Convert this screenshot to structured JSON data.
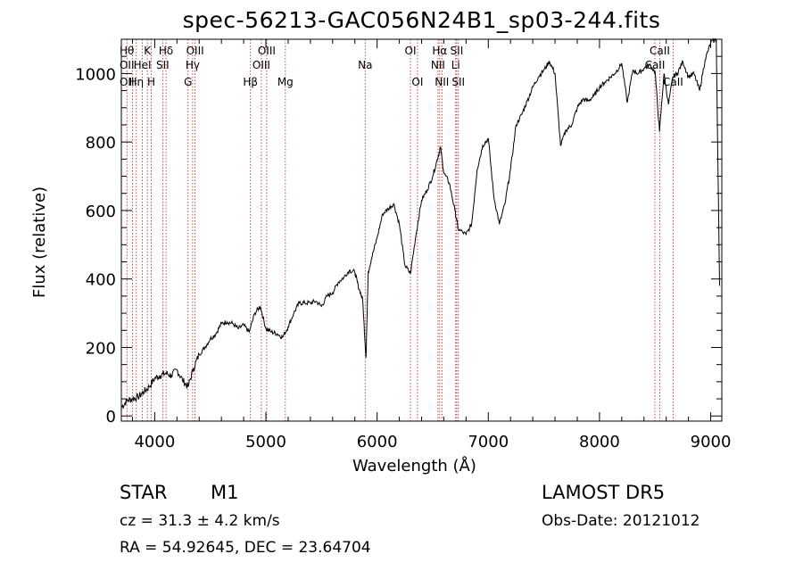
{
  "chart_data": {
    "type": "line",
    "title": "spec-56213-GAC056N24B1_sp03-244.fits",
    "xlabel": "Wavelength (Å)",
    "ylabel": "Flux (relative)",
    "xlim": [
      3700,
      9100
    ],
    "ylim": [
      -15,
      1100
    ],
    "xticks": [
      4000,
      5000,
      6000,
      7000,
      8000,
      9000
    ],
    "yticks": [
      0,
      200,
      400,
      600,
      800,
      1000
    ],
    "grid": false,
    "series": [
      {
        "color": "#000000",
        "points": [
          [
            3700,
            25
          ],
          [
            3750,
            45
          ],
          [
            3800,
            50
          ],
          [
            3850,
            55
          ],
          [
            3900,
            70
          ],
          [
            3950,
            85
          ],
          [
            4000,
            110
          ],
          [
            4050,
            118
          ],
          [
            4100,
            125
          ],
          [
            4150,
            118
          ],
          [
            4200,
            135
          ],
          [
            4250,
            105
          ],
          [
            4300,
            85
          ],
          [
            4350,
            140
          ],
          [
            4400,
            180
          ],
          [
            4450,
            200
          ],
          [
            4500,
            225
          ],
          [
            4550,
            240
          ],
          [
            4600,
            270
          ],
          [
            4650,
            275
          ],
          [
            4700,
            270
          ],
          [
            4750,
            255
          ],
          [
            4800,
            265
          ],
          [
            4850,
            245
          ],
          [
            4900,
            300
          ],
          [
            4950,
            320
          ],
          [
            5000,
            255
          ],
          [
            5050,
            245
          ],
          [
            5100,
            240
          ],
          [
            5150,
            230
          ],
          [
            5200,
            260
          ],
          [
            5250,
            300
          ],
          [
            5300,
            330
          ],
          [
            5350,
            330
          ],
          [
            5400,
            330
          ],
          [
            5450,
            335
          ],
          [
            5500,
            320
          ],
          [
            5550,
            350
          ],
          [
            5600,
            360
          ],
          [
            5650,
            390
          ],
          [
            5700,
            405
          ],
          [
            5750,
            425
          ],
          [
            5800,
            420
          ],
          [
            5830,
            380
          ],
          [
            5870,
            340
          ],
          [
            5900,
            170
          ],
          [
            5920,
            420
          ],
          [
            5950,
            460
          ],
          [
            6000,
            520
          ],
          [
            6050,
            590
          ],
          [
            6100,
            605
          ],
          [
            6150,
            620
          ],
          [
            6200,
            560
          ],
          [
            6250,
            440
          ],
          [
            6300,
            415
          ],
          [
            6350,
            530
          ],
          [
            6400,
            630
          ],
          [
            6450,
            660
          ],
          [
            6500,
            700
          ],
          [
            6550,
            760
          ],
          [
            6570,
            785
          ],
          [
            6600,
            710
          ],
          [
            6650,
            680
          ],
          [
            6700,
            600
          ],
          [
            6730,
            545
          ],
          [
            6800,
            530
          ],
          [
            6850,
            560
          ],
          [
            6900,
            720
          ],
          [
            6950,
            790
          ],
          [
            7000,
            810
          ],
          [
            7050,
            640
          ],
          [
            7100,
            560
          ],
          [
            7150,
            620
          ],
          [
            7200,
            720
          ],
          [
            7250,
            850
          ],
          [
            7300,
            880
          ],
          [
            7350,
            920
          ],
          [
            7400,
            960
          ],
          [
            7450,
            990
          ],
          [
            7500,
            1010
          ],
          [
            7550,
            1035
          ],
          [
            7600,
            1000
          ],
          [
            7650,
            790
          ],
          [
            7700,
            835
          ],
          [
            7750,
            850
          ],
          [
            7800,
            900
          ],
          [
            7850,
            925
          ],
          [
            7900,
            920
          ],
          [
            7950,
            935
          ],
          [
            8000,
            960
          ],
          [
            8050,
            975
          ],
          [
            8100,
            990
          ],
          [
            8150,
            1005
          ],
          [
            8200,
            1030
          ],
          [
            8250,
            915
          ],
          [
            8300,
            1010
          ],
          [
            8350,
            1000
          ],
          [
            8400,
            1015
          ],
          [
            8450,
            1025
          ],
          [
            8500,
            1005
          ],
          [
            8540,
            830
          ],
          [
            8580,
            1000
          ],
          [
            8620,
            910
          ],
          [
            8660,
            990
          ],
          [
            8700,
            1000
          ],
          [
            8750,
            1035
          ],
          [
            8800,
            990
          ],
          [
            8850,
            1000
          ],
          [
            8900,
            950
          ],
          [
            8950,
            1040
          ],
          [
            9000,
            1090
          ],
          [
            9050,
            1100
          ],
          [
            9080,
            380
          ]
        ]
      }
    ],
    "lines": [
      {
        "x": 3750,
        "labels": [
          "Hθ",
          "OII",
          "OII"
        ]
      },
      {
        "x": 3800,
        "labels": [
          "",
          "",
          ""
        ]
      },
      {
        "x": 3835,
        "labels": [
          "",
          "",
          "Hη"
        ]
      },
      {
        "x": 3889,
        "labels": [
          "",
          "HeI",
          ""
        ]
      },
      {
        "x": 3934,
        "labels": [
          "K",
          "",
          ""
        ]
      },
      {
        "x": 3969,
        "labels": [
          "",
          "",
          "H"
        ]
      },
      {
        "x": 4072,
        "labels": [
          "",
          "SII",
          ""
        ]
      },
      {
        "x": 4102,
        "labels": [
          "Hδ",
          "",
          ""
        ]
      },
      {
        "x": 4300,
        "labels": [
          "",
          "",
          "G"
        ]
      },
      {
        "x": 4341,
        "labels": [
          "",
          "Hγ",
          ""
        ]
      },
      {
        "x": 4363,
        "labels": [
          "OIII",
          "",
          ""
        ]
      },
      {
        "x": 4861,
        "labels": [
          "",
          "",
          "Hβ"
        ]
      },
      {
        "x": 4959,
        "labels": [
          "",
          "OIII",
          ""
        ]
      },
      {
        "x": 5007,
        "labels": [
          "OIII",
          "",
          ""
        ]
      },
      {
        "x": 5175,
        "labels": [
          "",
          "",
          "Mg"
        ]
      },
      {
        "x": 5893,
        "labels": [
          "",
          "Na",
          ""
        ]
      },
      {
        "x": 6300,
        "labels": [
          "OI",
          "",
          ""
        ]
      },
      {
        "x": 6363,
        "labels": [
          "",
          "",
          "OI"
        ]
      },
      {
        "x": 6548,
        "labels": [
          "",
          "NII",
          ""
        ]
      },
      {
        "x": 6563,
        "labels": [
          "Hα",
          "",
          ""
        ]
      },
      {
        "x": 6583,
        "labels": [
          "",
          "",
          "NII"
        ]
      },
      {
        "x": 6707,
        "labels": [
          "",
          "Li",
          ""
        ]
      },
      {
        "x": 6716,
        "labels": [
          "SII",
          "",
          ""
        ]
      },
      {
        "x": 6731,
        "labels": [
          "",
          "",
          "SII"
        ]
      },
      {
        "x": 8498,
        "labels": [
          "",
          "CaII",
          ""
        ]
      },
      {
        "x": 8542,
        "labels": [
          "CaII",
          "",
          ""
        ]
      },
      {
        "x": 8662,
        "labels": [
          "",
          "",
          "CaII"
        ]
      }
    ]
  },
  "info": {
    "obj_class": "STAR",
    "obj_subclass": "M1",
    "survey": "LAMOST DR5",
    "cz": "cz = 31.3 ± 4.2 km/s",
    "obs_date": "Obs-Date: 20121012",
    "radec": "RA =  54.92645, DEC =  23.64704"
  }
}
